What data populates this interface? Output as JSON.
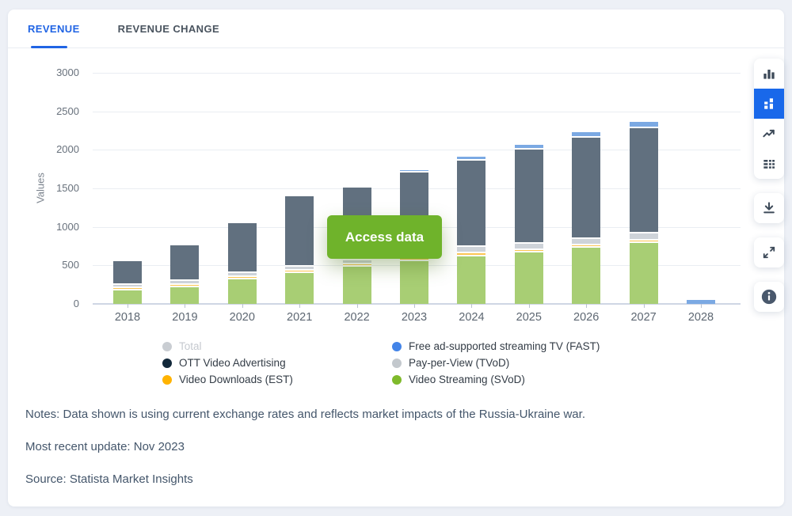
{
  "tabs": {
    "revenue": "REVENUE",
    "revenue_change": "REVENUE CHANGE"
  },
  "access_button": {
    "label": "Access data",
    "color": "#6fb32b"
  },
  "toolbar": {
    "buttons": [
      "column-chart",
      "stacked-column-chart",
      "line-chart",
      "data-table",
      "download",
      "fullscreen",
      "info"
    ],
    "active": "stacked-column-chart",
    "active_color": "#1968ea"
  },
  "colors": {
    "accent_blue": "#2064e4",
    "page_background": "#edf0f6",
    "gridline": "#eaedf2",
    "axis_line": "#cfd6e4"
  },
  "chart_data": {
    "type": "bar",
    "stacked": true,
    "title": "",
    "xlabel": "",
    "ylabel": "Values",
    "ylim": [
      0,
      3000
    ],
    "yticks": [
      0,
      500,
      1000,
      1500,
      2000,
      2500,
      3000
    ],
    "grid": true,
    "legend_position": "bottom",
    "categories": [
      "2018",
      "2019",
      "2020",
      "2021",
      "2022",
      "2023",
      "2024",
      "2025",
      "2026",
      "2027",
      "2028"
    ],
    "series": [
      {
        "name": "Video Streaming (SVoD)",
        "key": "svod",
        "bar_color": "#a8ce74",
        "legend_color": "#7fba2b",
        "values": [
          175,
          215,
          320,
          400,
          480,
          560,
          620,
          665,
          725,
          790,
          0
        ]
      },
      {
        "name": "Video Downloads (EST)",
        "key": "est",
        "bar_color": "#fcc653",
        "legend_color": "#ffb300",
        "values": [
          30,
          32,
          30,
          35,
          35,
          35,
          35,
          35,
          35,
          35,
          0
        ]
      },
      {
        "name": "Pay-per-View (TVoD)",
        "key": "tvod",
        "bar_color": "#ced3d9",
        "legend_color": "#c3c8cd",
        "values": [
          45,
          50,
          48,
          50,
          55,
          60,
          80,
          80,
          85,
          88,
          0
        ]
      },
      {
        "name": "OTT Video Advertising",
        "key": "ott-video-advertising",
        "bar_color": "#61707f",
        "legend_color": "#12283a",
        "values": [
          300,
          465,
          655,
          910,
          945,
          1050,
          1120,
          1225,
          1310,
          1370,
          0
        ]
      },
      {
        "name": "Free ad-supported streaming TV (FAST)",
        "key": "fast",
        "bar_color": "#7ba9e3",
        "legend_color": "#4384e8",
        "values": [
          0,
          0,
          0,
          8,
          20,
          30,
          60,
          65,
          70,
          78,
          55
        ]
      }
    ]
  },
  "legend": {
    "items": [
      {
        "label": "Total",
        "color": "#c9cdd2",
        "disabled": true,
        "column": 1
      },
      {
        "label": "OTT Video Advertising",
        "color": "#12283a",
        "disabled": false,
        "column": 1
      },
      {
        "label": "Video Downloads (EST)",
        "color": "#ffb300",
        "disabled": false,
        "column": 1
      },
      {
        "label": "Free ad-supported streaming TV (FAST)",
        "color": "#4384e8",
        "disabled": false,
        "column": 2
      },
      {
        "label": "Pay-per-View (TVoD)",
        "color": "#c3c8cd",
        "disabled": false,
        "column": 2
      },
      {
        "label": "Video Streaming (SVoD)",
        "color": "#7fba2b",
        "disabled": false,
        "column": 2
      }
    ]
  },
  "notes": {
    "line1": "Notes: Data shown is using current exchange rates and reflects market impacts of the Russia-Ukraine war.",
    "line2": "Most recent update: Nov 2023",
    "line3": "Source: Statista Market Insights"
  }
}
